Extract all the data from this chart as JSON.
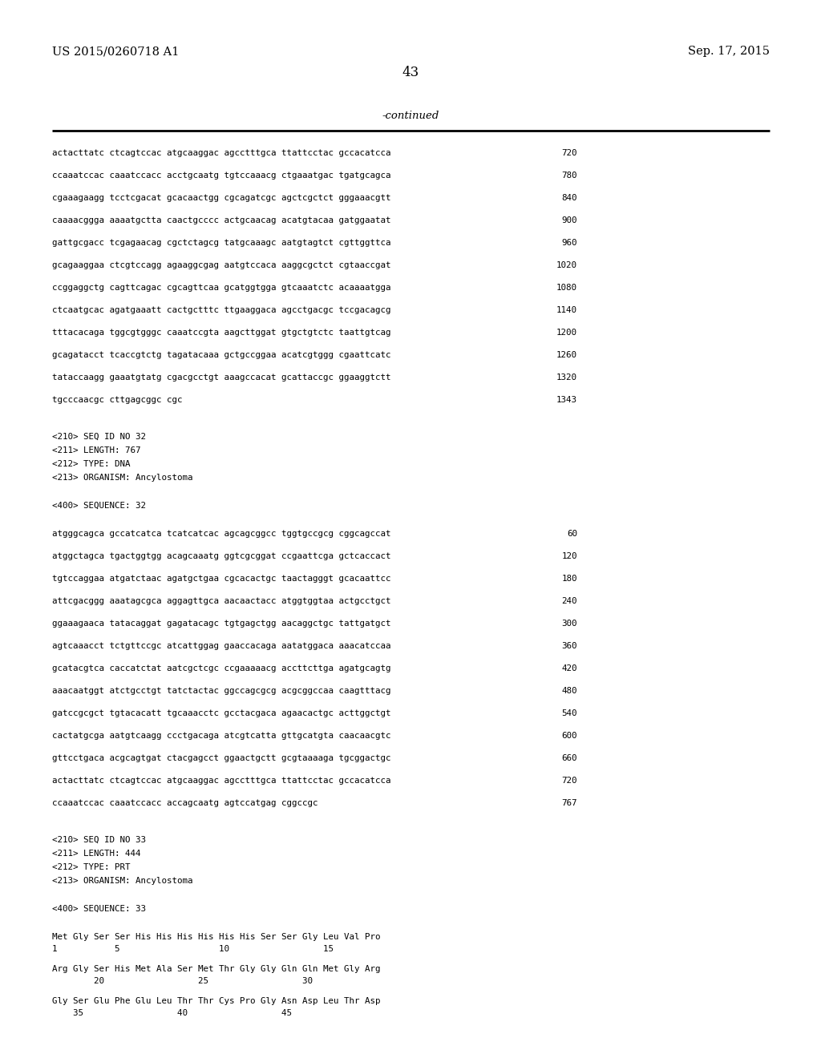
{
  "background_color": "#ffffff",
  "header_left": "US 2015/0260718 A1",
  "header_right": "Sep. 17, 2015",
  "page_number": "43",
  "continued_label": "-continued",
  "content": [
    {
      "type": "seq_line",
      "text": "actacttatc ctcagtccac atgcaaggac agcctttgca ttattcctac gccacatcca",
      "num": "720"
    },
    {
      "type": "seq_line",
      "text": "ccaaatccac caaatccacc acctgcaatg tgtccaaacg ctgaaatgac tgatgcagca",
      "num": "780"
    },
    {
      "type": "seq_line",
      "text": "cgaaagaagg tcctcgacat gcacaactgg cgcagatcgc agctcgctct gggaaacgtt",
      "num": "840"
    },
    {
      "type": "seq_line",
      "text": "caaaacggga aaaatgctta caactgcccc actgcaacag acatgtacaa gatggaatat",
      "num": "900"
    },
    {
      "type": "seq_line",
      "text": "gattgcgacc tcgagaacag cgctctagcg tatgcaaagc aatgtagtct cgttggttca",
      "num": "960"
    },
    {
      "type": "seq_line",
      "text": "gcagaaggaa ctcgtccagg agaaggcgag aatgtccaca aaggcgctct cgtaaccgat",
      "num": "1020"
    },
    {
      "type": "seq_line",
      "text": "ccggaggctg cagttcagac cgcagttcaa gcatggtgga gtcaaatctc acaaaatgga",
      "num": "1080"
    },
    {
      "type": "seq_line",
      "text": "ctcaatgcac agatgaaatt cactgctttc ttgaaggaca agcctgacgc tccgacagcg",
      "num": "1140"
    },
    {
      "type": "seq_line",
      "text": "tttacacaga tggcgtgggc caaatccgta aagcttggat gtgctgtctc taattgtcag",
      "num": "1200"
    },
    {
      "type": "seq_line",
      "text": "gcagatacct tcaccgtctg tagatacaaa gctgccggaa acatcgtggg cgaattcatc",
      "num": "1260"
    },
    {
      "type": "seq_line",
      "text": "tataccaagg gaaatgtatg cgacgcctgt aaagccacat gcattaccgc ggaaggtctt",
      "num": "1320"
    },
    {
      "type": "seq_line",
      "text": "tgcccaacgc cttgagcggc cgc",
      "num": "1343"
    },
    {
      "type": "blank"
    },
    {
      "type": "meta_line",
      "text": "<210> SEQ ID NO 32"
    },
    {
      "type": "meta_line",
      "text": "<211> LENGTH: 767"
    },
    {
      "type": "meta_line",
      "text": "<212> TYPE: DNA"
    },
    {
      "type": "meta_line",
      "text": "<213> ORGANISM: Ancylostoma"
    },
    {
      "type": "blank"
    },
    {
      "type": "meta_line",
      "text": "<400> SEQUENCE: 32"
    },
    {
      "type": "blank"
    },
    {
      "type": "seq_line",
      "text": "atgggcagca gccatcatca tcatcatcac agcagcggcc tggtgccgcg cggcagccat",
      "num": "60"
    },
    {
      "type": "seq_line",
      "text": "atggctagca tgactggtgg acagcaaatg ggtcgcggat ccgaattcga gctcaccact",
      "num": "120"
    },
    {
      "type": "seq_line",
      "text": "tgtccaggaa atgatctaac agatgctgaa cgcacactgc taactagggt gcacaattcc",
      "num": "180"
    },
    {
      "type": "seq_line",
      "text": "attcgacggg aaatagcgca aggagttgca aacaactacc atggtggtaa actgcctgct",
      "num": "240"
    },
    {
      "type": "seq_line",
      "text": "ggaaagaaca tatacaggat gagatacagc tgtgagctgg aacaggctgc tattgatgct",
      "num": "300"
    },
    {
      "type": "seq_line",
      "text": "agtcaaacct tctgttccgc atcattggag gaaccacaga aatatggaca aaacatccaa",
      "num": "360"
    },
    {
      "type": "seq_line",
      "text": "gcatacgtca caccatctat aatcgctcgc ccgaaaaacg accttcttga agatgcagtg",
      "num": "420"
    },
    {
      "type": "seq_line",
      "text": "aaacaatggt atctgcctgt tatctactac ggccagcgcg acgcggccaa caagtttacg",
      "num": "480"
    },
    {
      "type": "seq_line",
      "text": "gatccgcgct tgtacacatt tgcaaacctc gcctacgaca agaacactgc acttggctgt",
      "num": "540"
    },
    {
      "type": "seq_line",
      "text": "cactatgcga aatgtcaagg ccctgacaga atcgtcatta gttgcatgta caacaacgtc",
      "num": "600"
    },
    {
      "type": "seq_line",
      "text": "gttcctgaca acgcagtgat ctacgagcct ggaactgctt gcgtaaaaga tgcggactgc",
      "num": "660"
    },
    {
      "type": "seq_line",
      "text": "actacttatc ctcagtccac atgcaaggac agcctttgca ttattcctac gccacatcca",
      "num": "720"
    },
    {
      "type": "seq_line",
      "text": "ccaaatccac caaatccacc accagcaatg agtccatgag cggccgc",
      "num": "767"
    },
    {
      "type": "blank"
    },
    {
      "type": "meta_line",
      "text": "<210> SEQ ID NO 33"
    },
    {
      "type": "meta_line",
      "text": "<211> LENGTH: 444"
    },
    {
      "type": "meta_line",
      "text": "<212> TYPE: PRT"
    },
    {
      "type": "meta_line",
      "text": "<213> ORGANISM: Ancylostoma"
    },
    {
      "type": "blank"
    },
    {
      "type": "meta_line",
      "text": "<400> SEQUENCE: 33"
    },
    {
      "type": "blank"
    },
    {
      "type": "aa_line",
      "text": "Met Gly Ser Ser His His His His His His Ser Ser Gly Leu Val Pro",
      "nums": "1           5                   10                  15"
    },
    {
      "type": "blank_small"
    },
    {
      "type": "aa_line",
      "text": "Arg Gly Ser His Met Ala Ser Met Thr Gly Gly Gln Gln Met Gly Arg",
      "nums": "        20                  25                  30"
    },
    {
      "type": "blank_small"
    },
    {
      "type": "aa_line",
      "text": "Gly Ser Glu Phe Glu Leu Thr Thr Cys Pro Gly Asn Asp Leu Thr Asp",
      "nums": "    35                  40                  45"
    }
  ]
}
